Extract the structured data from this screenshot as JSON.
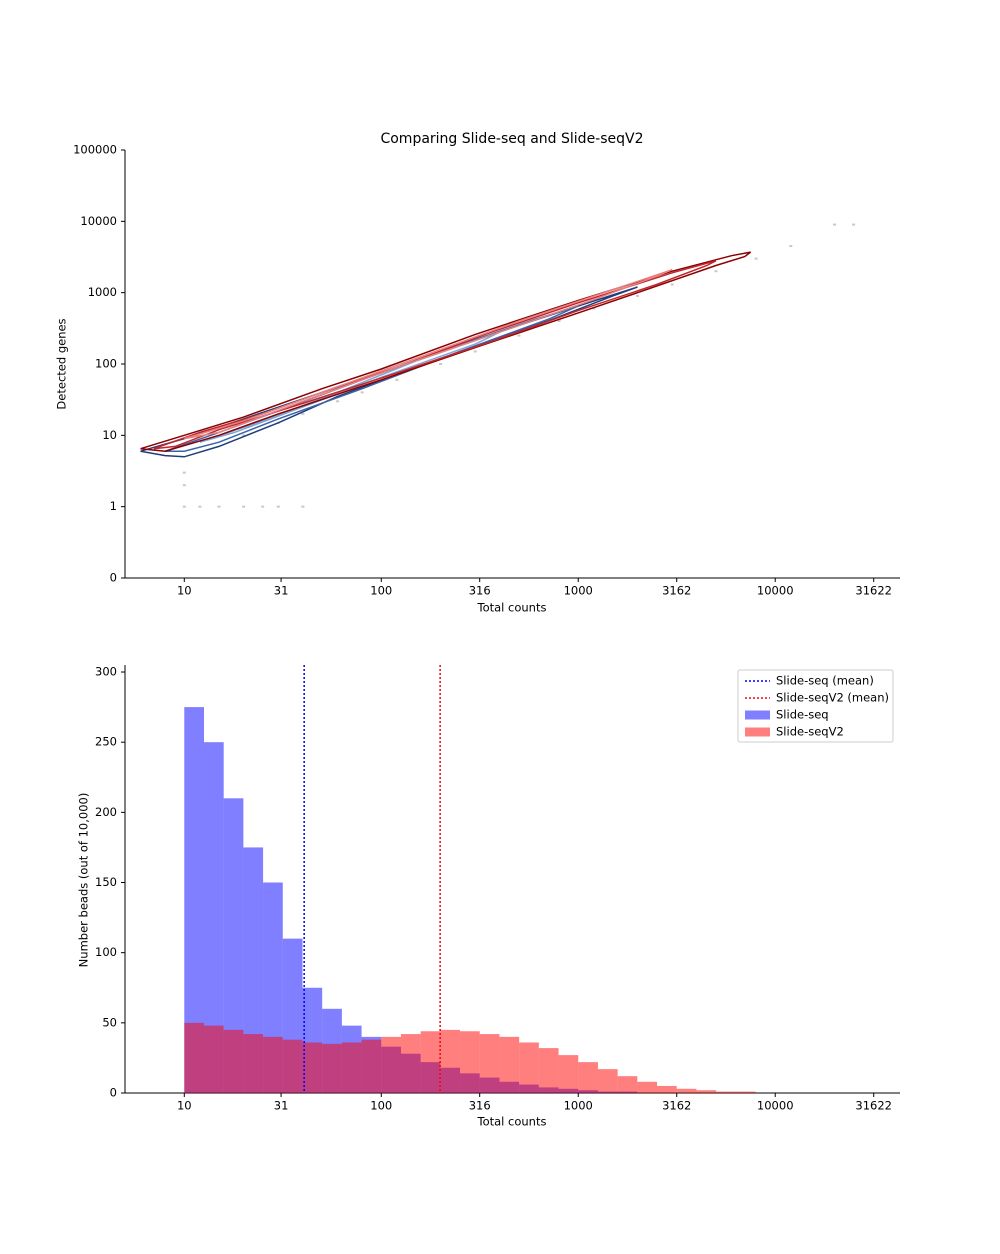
{
  "chart_data": [
    {
      "type": "scatter",
      "title": "Comparing Slide-seq and Slide-seqV2",
      "xlabel": "Total counts",
      "ylabel": "Detected genes",
      "xscale": "log",
      "yscale": "symlog",
      "linthresh": 1,
      "xlim": [
        5,
        43000
      ],
      "ylim": [
        0,
        100000
      ],
      "xticks": [
        10,
        31,
        100,
        316,
        1000,
        3162,
        10000,
        31622
      ],
      "yticks": [
        0,
        1,
        10,
        100,
        1000,
        10000,
        100000
      ],
      "points": {
        "color": "#c8c8c8",
        "x": [
          10,
          12,
          15,
          20,
          25,
          30,
          40,
          10,
          10,
          20,
          30,
          40,
          60,
          80,
          120,
          200,
          300,
          500,
          800,
          1200,
          2000,
          3000,
          5000,
          8000,
          12000,
          20000,
          25000
        ],
        "y": [
          1,
          1,
          1,
          1,
          1,
          1,
          1,
          2,
          3,
          10,
          15,
          20,
          30,
          40,
          60,
          100,
          150,
          250,
          400,
          600,
          900,
          1300,
          2000,
          3000,
          4500,
          9000,
          9000
        ]
      },
      "contours": [
        {
          "color": "#1f3d7a",
          "x": [
            6,
            10,
            20,
            50,
            100,
            300,
            1000,
            2000,
            1500,
            700,
            200,
            60,
            30,
            15,
            10,
            8,
            6
          ],
          "y": [
            6,
            9,
            17,
            40,
            75,
            220,
            650,
            1200,
            900,
            400,
            120,
            35,
            15,
            7,
            5,
            5.2,
            6
          ]
        },
        {
          "color": "#3a64a8",
          "x": [
            8,
            15,
            30,
            80,
            200,
            600,
            1000,
            700,
            250,
            80,
            30,
            15,
            10,
            8
          ],
          "y": [
            6,
            11,
            22,
            60,
            150,
            420,
            650,
            420,
            150,
            45,
            17,
            8,
            6,
            6
          ]
        },
        {
          "color": "#7fa6d6",
          "x": [
            12,
            25,
            60,
            150,
            400,
            300,
            100,
            40,
            18,
            12
          ],
          "y": [
            8,
            16,
            40,
            110,
            280,
            190,
            65,
            25,
            11,
            8
          ]
        },
        {
          "color": "#8b0000",
          "x": [
            6,
            10,
            20,
            50,
            100,
            300,
            1000,
            3000,
            6000,
            7500,
            7000,
            5000,
            2000,
            1000,
            300,
            100,
            30,
            15,
            8,
            6
          ],
          "y": [
            6.5,
            10,
            18,
            45,
            85,
            260,
            780,
            2000,
            3300,
            3700,
            3200,
            2400,
            1000,
            520,
            170,
            60,
            20,
            10,
            6,
            6.5
          ]
        },
        {
          "color": "#c0272d",
          "x": [
            7,
            12,
            25,
            60,
            120,
            350,
            1000,
            3000,
            5000,
            4500,
            2500,
            1000,
            350,
            120,
            40,
            15,
            9,
            7
          ],
          "y": [
            6.5,
            11,
            20,
            48,
            90,
            270,
            720,
            1900,
            2800,
            2400,
            1300,
            560,
            200,
            75,
            28,
            12,
            7,
            6.5
          ]
        },
        {
          "color": "#e88080",
          "x": [
            10,
            20,
            50,
            150,
            500,
            1500,
            3000,
            2500,
            1200,
            400,
            120,
            40,
            15,
            10
          ],
          "y": [
            9,
            16,
            40,
            120,
            400,
            1100,
            2100,
            1700,
            800,
            280,
            90,
            30,
            11,
            9
          ]
        }
      ]
    },
    {
      "type": "histogram",
      "xlabel": "Total counts",
      "ylabel": "Number beads (out of 10,000)",
      "xscale": "log",
      "xlim": [
        5,
        43000
      ],
      "ylim": [
        0,
        305
      ],
      "xticks": [
        10,
        31,
        100,
        316,
        1000,
        3162,
        10000,
        31622
      ],
      "yticks": [
        0,
        50,
        100,
        150,
        200,
        250,
        300
      ],
      "alpha": 0.5,
      "legend": "upper right",
      "bins": [
        10,
        12.59,
        15.85,
        19.95,
        25.12,
        31.62,
        39.81,
        50.12,
        63.1,
        79.43,
        100,
        125.9,
        158.5,
        199.5,
        251.2,
        316.2,
        398.1,
        501.2,
        631,
        794.3,
        1000,
        1259,
        1585,
        1995,
        2512,
        3162,
        3981,
        5012,
        6310,
        7943,
        10000,
        12589,
        15849
      ],
      "series": [
        {
          "name": "Slide-seq",
          "color": "#0000ff",
          "values": [
            275,
            250,
            210,
            175,
            150,
            110,
            75,
            60,
            48,
            40,
            33,
            28,
            22,
            18,
            14,
            11,
            8,
            6,
            4,
            3,
            2,
            1,
            1,
            0,
            0,
            0,
            0,
            0,
            0,
            0,
            0,
            0
          ]
        },
        {
          "name": "Slide-seqV2",
          "color": "#ff0000",
          "values": [
            50,
            48,
            45,
            42,
            40,
            38,
            36,
            35,
            36,
            38,
            40,
            42,
            44,
            45,
            44,
            42,
            40,
            36,
            32,
            27,
            22,
            17,
            12,
            8,
            5,
            3,
            2,
            1,
            1,
            0,
            0,
            0
          ]
        }
      ],
      "mean_lines": [
        {
          "name": "Slide-seq (mean)",
          "color": "#0000ff",
          "value": 40.6
        },
        {
          "name": "Slide-seqV2 (mean)",
          "color": "#ff0000",
          "value": 199
        }
      ]
    }
  ]
}
